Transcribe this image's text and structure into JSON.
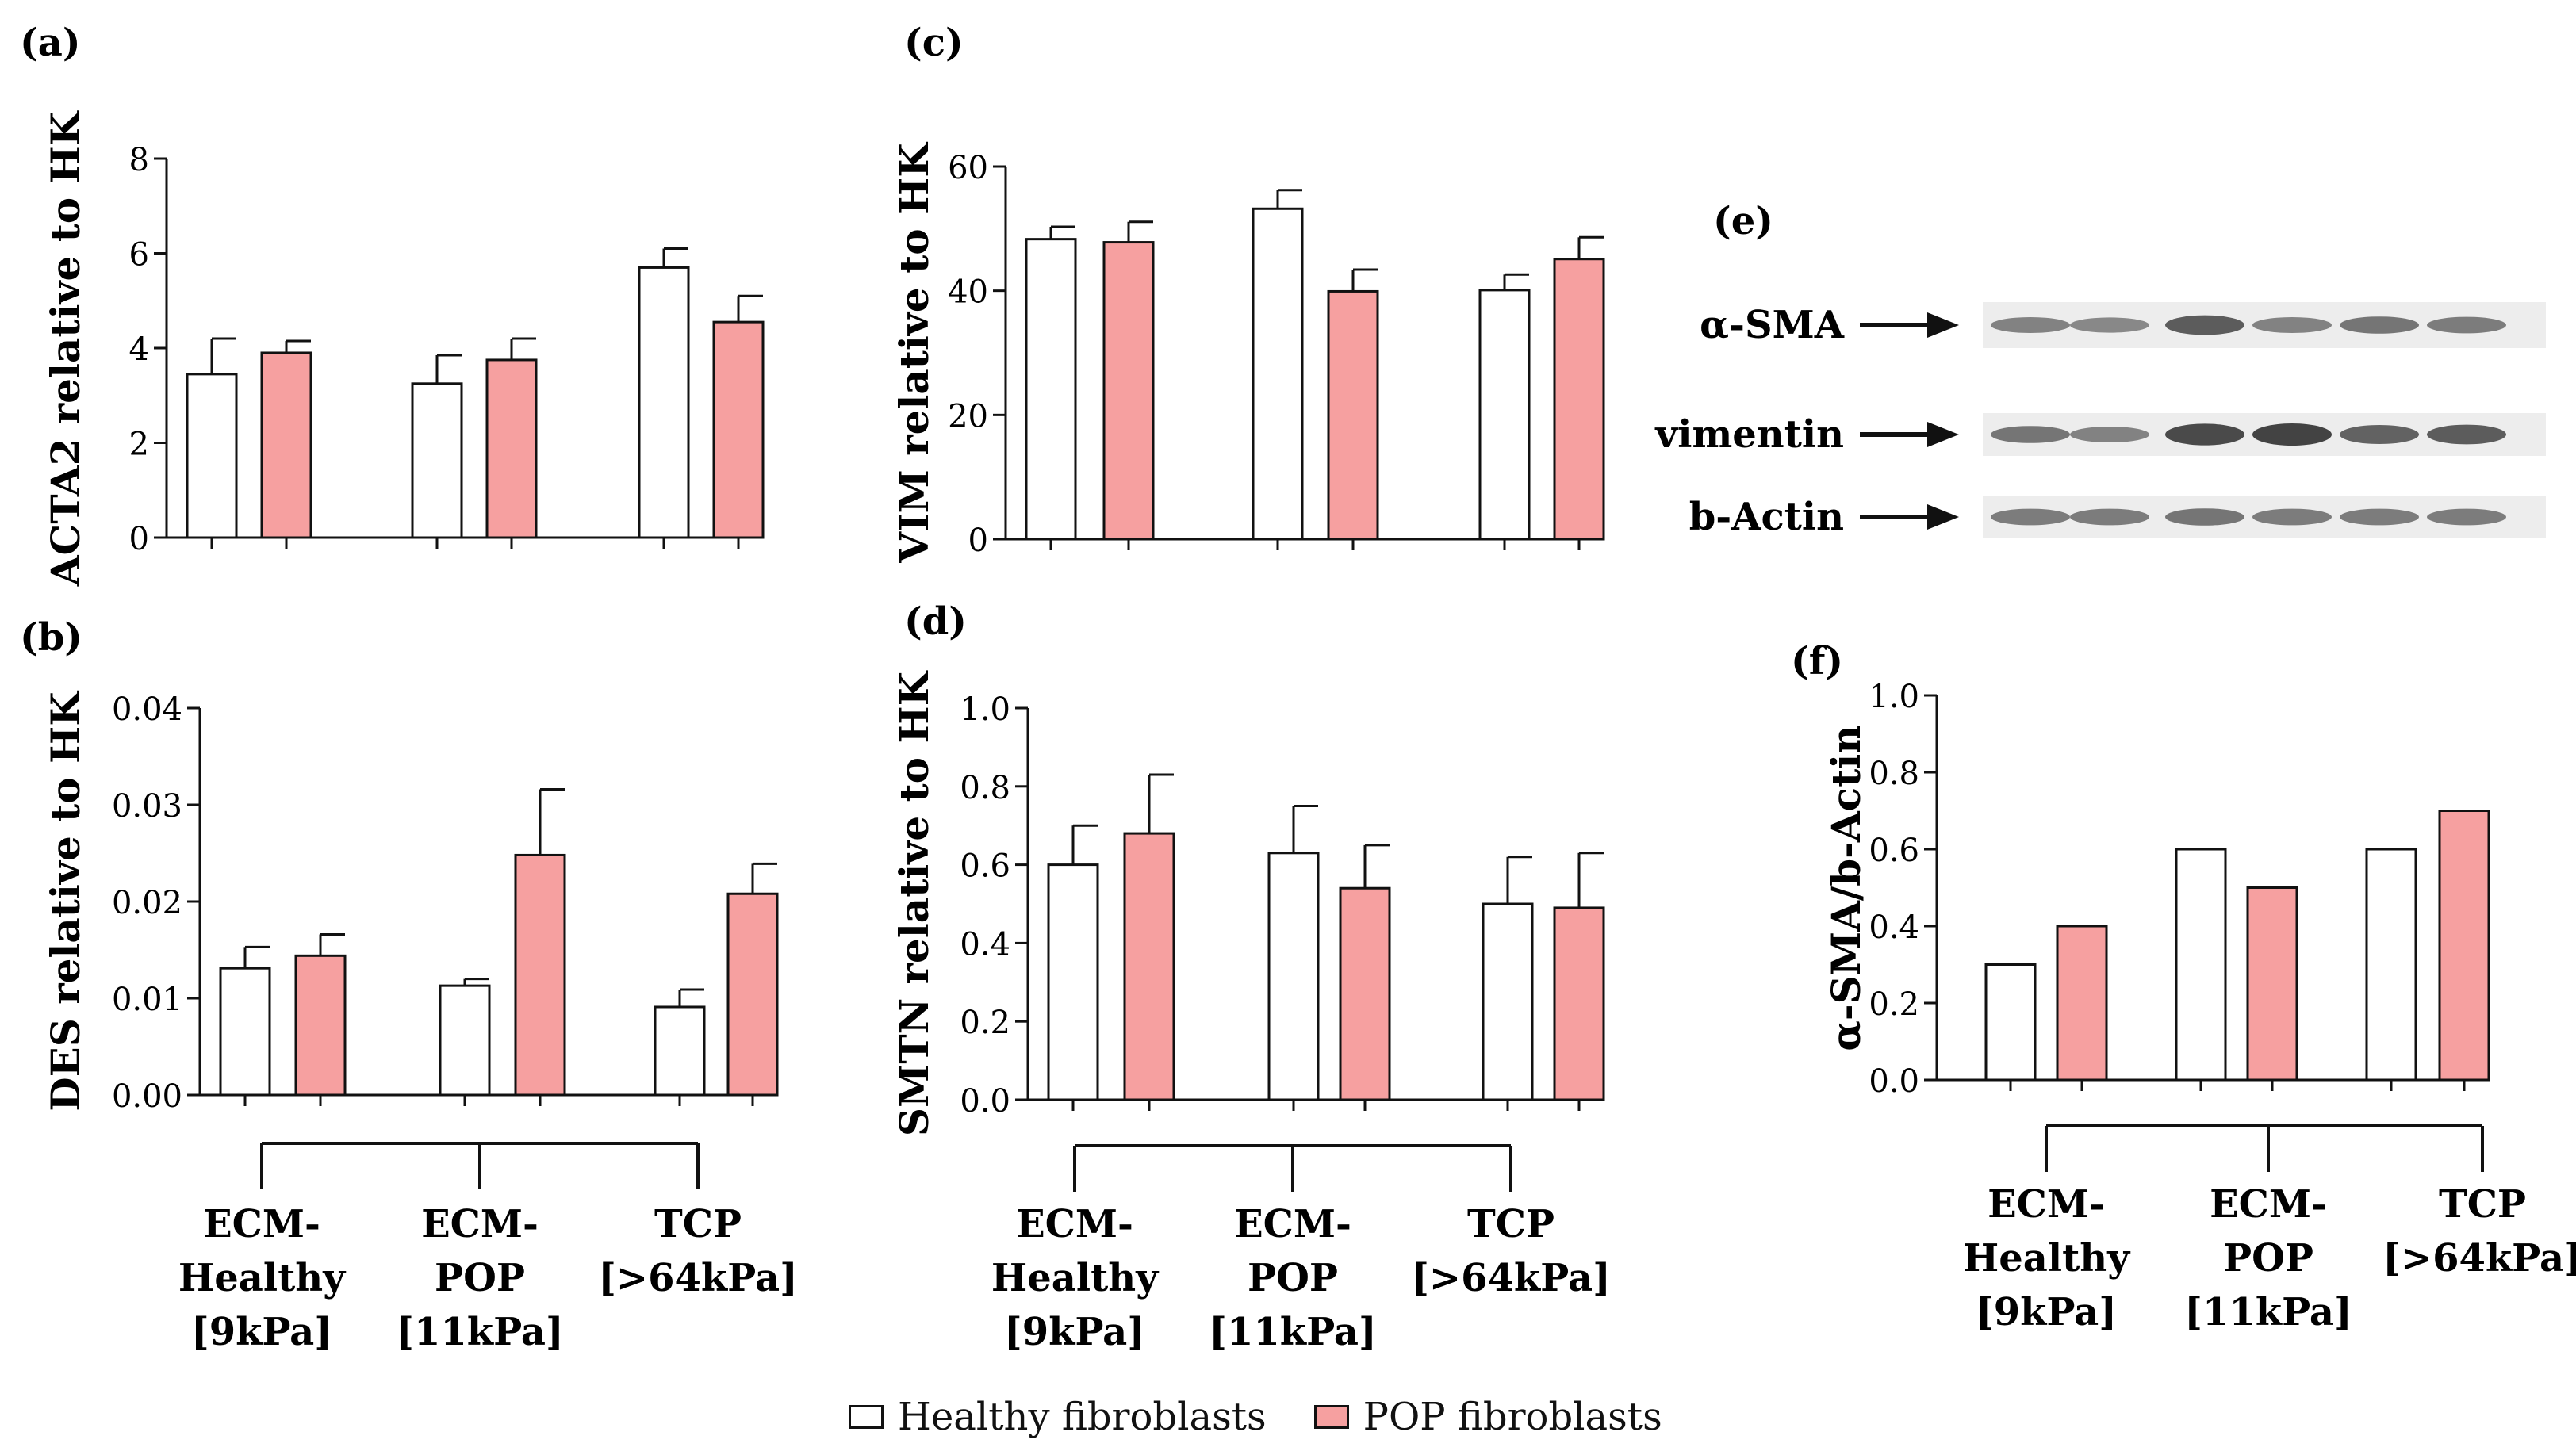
{
  "colors": {
    "healthy": "#ffffff",
    "pop": "#f6a0a0",
    "stroke": "#111111",
    "blot_band": "#3a3a3a"
  },
  "legend": {
    "healthy": "Healthy fibroblasts",
    "pop": "POP fibroblasts"
  },
  "groups": [
    {
      "l1": "ECM-",
      "l2": "Healthy",
      "l3": "[9kPa]"
    },
    {
      "l1": "ECM-",
      "l2": "POP",
      "l3": "[11kPa]"
    },
    {
      "l1": "TCP",
      "l2": "[>64kPa]",
      "l3": ""
    }
  ],
  "blot": {
    "panel_label": "(e)",
    "rows": [
      {
        "label": "α-SMA",
        "intensity": [
          0.5,
          0.45,
          0.8,
          0.5,
          0.6,
          0.55
        ]
      },
      {
        "label": "vimentin",
        "intensity": [
          0.6,
          0.5,
          0.95,
          1.0,
          0.75,
          0.8
        ]
      },
      {
        "label": "b-Actin",
        "intensity": [
          0.55,
          0.55,
          0.6,
          0.55,
          0.55,
          0.55
        ]
      }
    ]
  },
  "chart_data": [
    {
      "panel_label": "(a)",
      "type": "bar",
      "ylabel": "ACTA2 relative to HK",
      "categories": [
        "ECM-Healthy [9kPa]",
        "ECM-POP [11kPa]",
        "TCP [>64kPa]"
      ],
      "ylim": [
        0,
        8
      ],
      "yticks": [
        "0",
        "2",
        "4",
        "6",
        "8"
      ],
      "ytick_values": [
        0,
        2,
        4,
        6,
        8
      ],
      "series": [
        {
          "name": "Healthy fibroblasts",
          "values": [
            3.45,
            3.25,
            5.7
          ],
          "err": [
            0.75,
            0.6,
            0.4
          ]
        },
        {
          "name": "POP fibroblasts",
          "values": [
            3.9,
            3.75,
            4.55
          ],
          "err": [
            0.25,
            0.45,
            0.55
          ]
        }
      ]
    },
    {
      "panel_label": "(b)",
      "type": "bar",
      "ylabel": "DES relative to HK",
      "categories": [
        "ECM-Healthy [9kPa]",
        "ECM-POP [11kPa]",
        "TCP [>64kPa]"
      ],
      "ylim": [
        0,
        0.04
      ],
      "yticks": [
        "0.00",
        "0.01",
        "0.02",
        "0.03",
        "0.04"
      ],
      "ytick_values": [
        0,
        0.01,
        0.02,
        0.03,
        0.04
      ],
      "series": [
        {
          "name": "Healthy fibroblasts",
          "values": [
            0.0131,
            0.0113,
            0.0091
          ],
          "err": [
            0.0022,
            0.0007,
            0.0018
          ]
        },
        {
          "name": "POP fibroblasts",
          "values": [
            0.0144,
            0.0248,
            0.0208
          ],
          "err": [
            0.0022,
            0.0068,
            0.0031
          ]
        }
      ]
    },
    {
      "panel_label": "(c)",
      "type": "bar",
      "ylabel": "VIM relative to HK",
      "categories": [
        "ECM-Healthy [9kPa]",
        "ECM-POP [11kPa]",
        "TCP [>64kPa]"
      ],
      "ylim": [
        0,
        60
      ],
      "yticks": [
        "0",
        "20",
        "40",
        "60"
      ],
      "ytick_values": [
        0,
        20,
        40,
        60
      ],
      "series": [
        {
          "name": "Healthy fibroblasts",
          "values": [
            48.3,
            53.2,
            40.1
          ],
          "err": [
            2.0,
            3.0,
            2.5
          ]
        },
        {
          "name": "POP fibroblasts",
          "values": [
            47.8,
            39.9,
            45.1
          ],
          "err": [
            3.3,
            3.5,
            3.5
          ]
        }
      ]
    },
    {
      "panel_label": "(d)",
      "type": "bar",
      "ylabel": "SMTN relative to HK",
      "categories": [
        "ECM-Healthy [9kPa]",
        "ECM-POP [11kPa]",
        "TCP [>64kPa]"
      ],
      "ylim": [
        0,
        1.0
      ],
      "yticks": [
        "0.0",
        "0.2",
        "0.4",
        "0.6",
        "0.8",
        "1.0"
      ],
      "ytick_values": [
        0,
        0.2,
        0.4,
        0.6,
        0.8,
        1.0
      ],
      "series": [
        {
          "name": "Healthy fibroblasts",
          "values": [
            0.6,
            0.63,
            0.5
          ],
          "err": [
            0.1,
            0.12,
            0.12
          ]
        },
        {
          "name": "POP fibroblasts",
          "values": [
            0.68,
            0.54,
            0.49
          ],
          "err": [
            0.15,
            0.11,
            0.14
          ]
        }
      ]
    },
    {
      "panel_label": "(f)",
      "type": "bar",
      "ylabel": "α-SMA/b-Actin",
      "categories": [
        "ECM-Healthy [9kPa]",
        "ECM-POP [11kPa]",
        "TCP [>64kPa]"
      ],
      "ylim": [
        0,
        1.0
      ],
      "yticks": [
        "0.0",
        "0.2",
        "0.4",
        "0.6",
        "0.8",
        "1.0"
      ],
      "ytick_values": [
        0,
        0.2,
        0.4,
        0.6,
        0.8,
        1.0
      ],
      "series": [
        {
          "name": "Healthy fibroblasts",
          "values": [
            0.3,
            0.6,
            0.6
          ]
        },
        {
          "name": "POP fibroblasts",
          "values": [
            0.4,
            0.5,
            0.7
          ]
        }
      ]
    }
  ]
}
